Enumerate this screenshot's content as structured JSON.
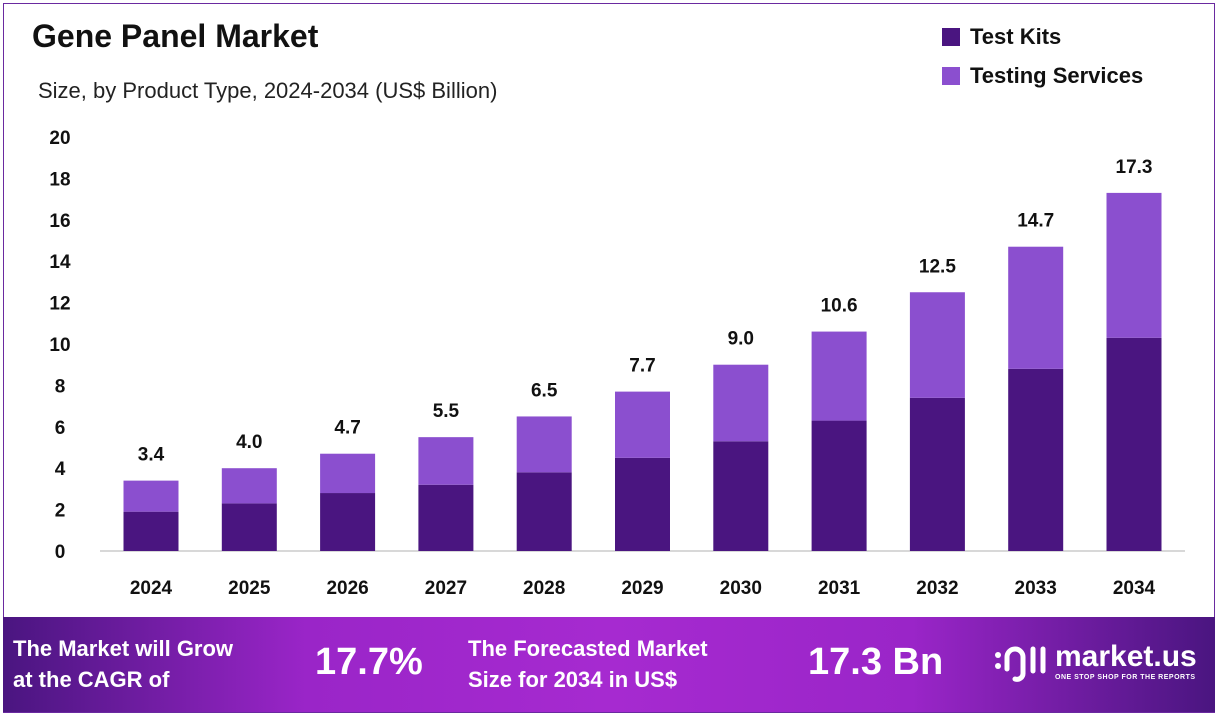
{
  "chart_data": {
    "type": "bar",
    "stacked": true,
    "title": "Gene Panel Market",
    "subtitle": "Size, by Product Type, 2024-2034 (US$ Billion)",
    "categories": [
      "2024",
      "2025",
      "2026",
      "2027",
      "2028",
      "2029",
      "2030",
      "2031",
      "2032",
      "2033",
      "2034"
    ],
    "series": [
      {
        "name": "Test Kits",
        "color": "#4a1580",
        "values": [
          1.9,
          2.3,
          2.8,
          3.2,
          3.8,
          4.5,
          5.3,
          6.3,
          7.4,
          8.8,
          10.3
        ]
      },
      {
        "name": "Testing Services",
        "color": "#8b4fcf",
        "values": [
          1.5,
          1.7,
          1.9,
          2.3,
          2.7,
          3.2,
          3.7,
          4.3,
          5.1,
          5.9,
          7.0
        ]
      }
    ],
    "totals": [
      "3.4",
      "4.0",
      "4.7",
      "5.5",
      "6.5",
      "7.7",
      "9.0",
      "10.6",
      "12.5",
      "14.7",
      "17.3"
    ],
    "yticks": [
      "0",
      "2",
      "4",
      "6",
      "8",
      "10",
      "12",
      "14",
      "16",
      "18",
      "20"
    ],
    "ylim": [
      0,
      20
    ],
    "grid": false,
    "legend_position": "top-right"
  },
  "footer": {
    "cagr_text_1": "The Market will Grow",
    "cagr_text_2": "at the CAGR of",
    "cagr_value": "17.7%",
    "forecast_text_1": "The Forecasted Market",
    "forecast_text_2": "Size for 2034 in US$",
    "forecast_value": "17.3 Bn",
    "logo_name": "market.us",
    "logo_tagline": "ONE STOP SHOP FOR THE REPORTS"
  }
}
